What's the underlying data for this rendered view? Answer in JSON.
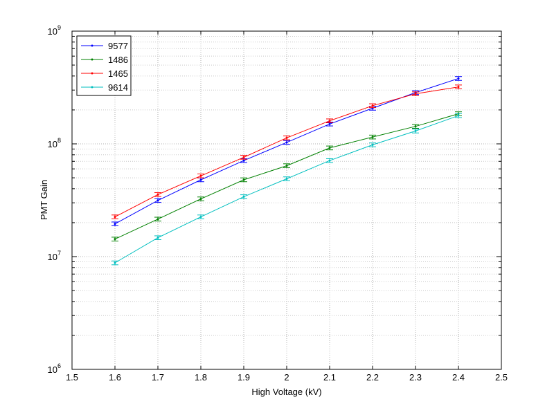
{
  "chart_data": {
    "type": "line",
    "xlabel": "High Voltage (kV)",
    "ylabel": "PMT Gain",
    "xlim": [
      1.5,
      2.5
    ],
    "ylim": [
      1000000,
      1000000000
    ],
    "yscale": "log",
    "grid": true,
    "legend_position": "top-left",
    "x_ticks": [
      "1.5",
      "1.6",
      "1.7",
      "1.8",
      "1.9",
      "2",
      "2.1",
      "2.2",
      "2.3",
      "2.4",
      "2.5"
    ],
    "y_ticks": [
      {
        "base": "10",
        "exp": "6"
      },
      {
        "base": "10",
        "exp": "7"
      },
      {
        "base": "10",
        "exp": "8"
      },
      {
        "base": "10",
        "exp": "9"
      }
    ],
    "x": [
      1.6,
      1.7,
      1.8,
      1.9,
      2.0,
      2.1,
      2.2,
      2.3,
      2.4
    ],
    "series": [
      {
        "name": "9577",
        "color": "#0000ff",
        "values": [
          19500000,
          31500000,
          48000000,
          71000000,
          103000000,
          150000000,
          207000000,
          285000000,
          380000000
        ]
      },
      {
        "name": "1486",
        "color": "#008000",
        "values": [
          14300000,
          21500000,
          32500000,
          48000000,
          64000000,
          92000000,
          115000000,
          143000000,
          185000000
        ]
      },
      {
        "name": "1465",
        "color": "#ff0000",
        "values": [
          22500000,
          35500000,
          52000000,
          76000000,
          113000000,
          160000000,
          218000000,
          278000000,
          320000000
        ]
      },
      {
        "name": "9614",
        "color": "#00bfbf",
        "values": [
          8800000,
          14700000,
          22500000,
          34000000,
          49000000,
          71000000,
          98000000,
          130000000,
          178000000
        ]
      }
    ]
  }
}
